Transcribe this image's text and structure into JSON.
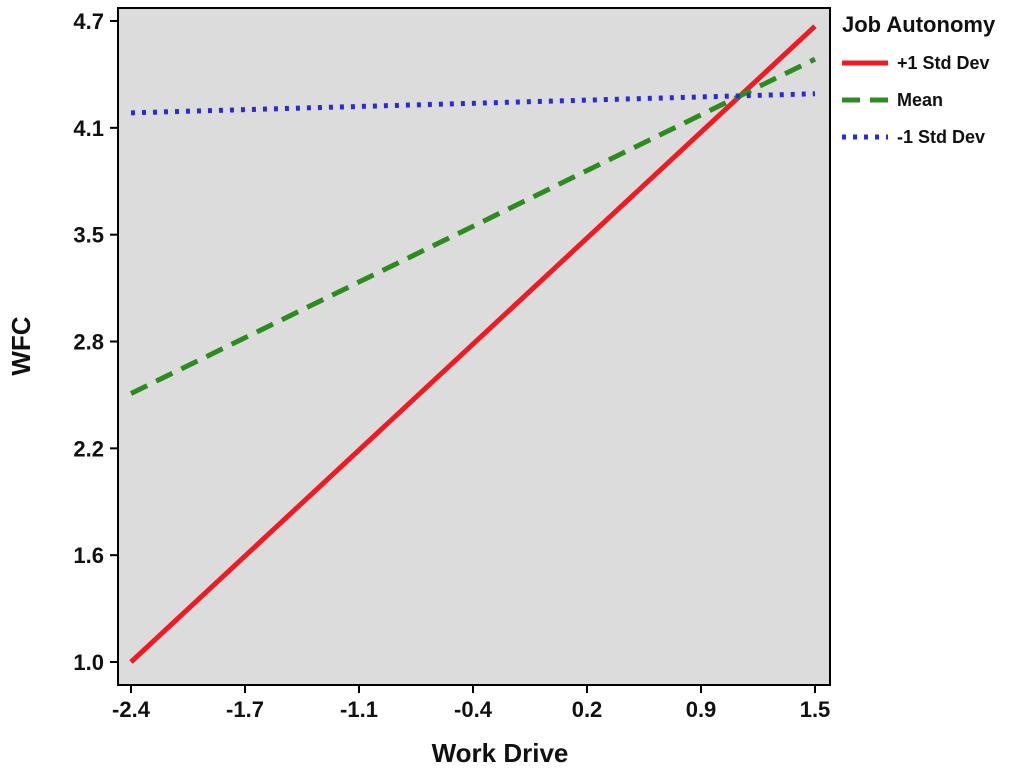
{
  "chart_data": {
    "type": "line",
    "title": "",
    "xlabel": "Work Drive",
    "ylabel": "WFC",
    "legend_title": "Job Autonomy",
    "legend_position": "top-right-outside",
    "x_tick_labels": [
      "-2.4",
      "-1.7",
      "-1.1",
      "-0.4",
      "0.2",
      "0.9",
      "1.5"
    ],
    "y_tick_labels": [
      "1.0",
      "1.6",
      "2.2",
      "2.8",
      "3.5",
      "4.1",
      "4.7"
    ],
    "xlim": [
      -2.4,
      1.5
    ],
    "ylim": [
      1.0,
      4.7
    ],
    "grid": false,
    "plot_background": "#dcdcdc",
    "frame_color": "#000000",
    "series": [
      {
        "name": "+1 Std Dev",
        "style": "solid",
        "color": "#ed1c24",
        "x": [
          -2.4,
          1.5
        ],
        "y": [
          1.0,
          4.67
        ]
      },
      {
        "name": "Mean",
        "style": "dashed",
        "color": "#2d8c1f",
        "x": [
          -2.4,
          1.5
        ],
        "y": [
          2.55,
          4.48
        ]
      },
      {
        "name": "-1 Std Dev",
        "style": "dotted",
        "color": "#2a2ad8",
        "x": [
          -2.4,
          1.5
        ],
        "y": [
          4.17,
          4.28
        ]
      }
    ]
  }
}
